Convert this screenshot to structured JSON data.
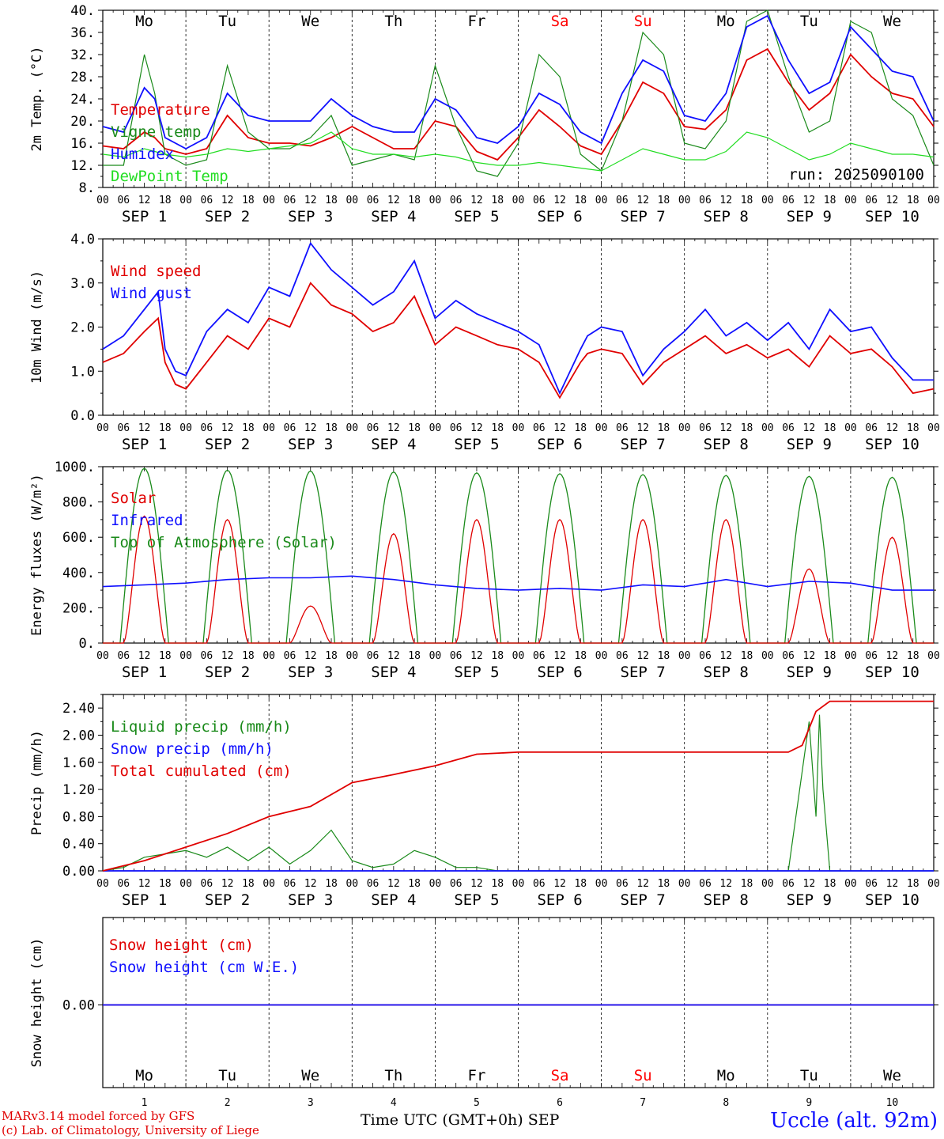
{
  "footer": {
    "credit_line1": "MARv3.14 model forced by GFS",
    "credit_line2": "(c) Lab. of Climatology, University of Liege",
    "xaxis_title": "Time UTC (GMT+0h) SEP",
    "station": "Uccle (alt. 92m)"
  },
  "colors": {
    "red": "#e00000",
    "blue": "#1010ff",
    "darkgreen": "#1a8a1a",
    "lightgreen": "#22dd22",
    "weekend": "#ff0000"
  },
  "days": {
    "weekdays": [
      "Mo",
      "Tu",
      "We",
      "Th",
      "Fr",
      "Sa",
      "Su",
      "Mo",
      "Tu",
      "We"
    ],
    "weekend_index": [
      5,
      6
    ],
    "dates": [
      "SEP  1",
      "SEP  2",
      "SEP  3",
      "SEP  4",
      "SEP  5",
      "SEP  6",
      "SEP  7",
      "SEP  8",
      "SEP  9",
      "SEP 10"
    ],
    "day_numbers": [
      "1",
      "2",
      "3",
      "4",
      "5",
      "6",
      "7",
      "8",
      "9",
      "10"
    ],
    "hour_ticks": [
      "00",
      "06",
      "12",
      "18"
    ],
    "final_tick": "00"
  },
  "chart_data": [
    {
      "type": "line",
      "ylabel": "2m Temp. (°C)",
      "ylim": [
        8,
        40
      ],
      "yticks": [
        "8.",
        "12.",
        "16.",
        "20.",
        "24.",
        "28.",
        "32.",
        "36.",
        "40."
      ],
      "annotation": "run: 2025090100",
      "x_unit": "hours since SEP 1 00 UTC",
      "series": [
        {
          "name": "Temperature",
          "color": "red",
          "x": [
            0,
            6,
            12,
            15,
            18,
            24,
            30,
            36,
            42,
            48,
            54,
            60,
            66,
            72,
            78,
            84,
            90,
            96,
            102,
            108,
            114,
            120,
            126,
            132,
            138,
            144,
            150,
            156,
            162,
            168,
            174,
            180,
            186,
            192,
            198,
            204,
            210,
            216,
            222,
            228,
            234,
            240
          ],
          "values": [
            15.5,
            15,
            18,
            17,
            15,
            14,
            15,
            21,
            17,
            16,
            16,
            15.5,
            17,
            19,
            17,
            15,
            15,
            20,
            19,
            14.5,
            13,
            17,
            22,
            19,
            15.5,
            14,
            20,
            27,
            25,
            19,
            18.5,
            22,
            31,
            33,
            27,
            22,
            25,
            32,
            28,
            25,
            24,
            19
          ]
        },
        {
          "name": "Vigne temp",
          "color": "darkgreen",
          "x": [
            0,
            6,
            12,
            15,
            18,
            24,
            30,
            36,
            42,
            48,
            54,
            60,
            66,
            72,
            78,
            84,
            90,
            96,
            102,
            108,
            114,
            120,
            126,
            132,
            138,
            144,
            150,
            156,
            162,
            168,
            174,
            180,
            186,
            192,
            198,
            204,
            210,
            216,
            222,
            228,
            234,
            240
          ],
          "values": [
            12,
            12,
            32,
            25,
            14,
            12,
            13,
            30,
            18,
            15,
            15,
            17,
            21,
            12,
            13,
            14,
            13,
            30,
            19,
            11,
            10,
            16,
            32,
            28,
            14,
            11,
            20,
            36,
            32,
            16,
            15,
            20,
            38,
            40,
            28,
            18,
            20,
            38,
            36,
            24,
            21,
            12
          ]
        },
        {
          "name": "Humidex",
          "color": "blue",
          "x": [
            0,
            6,
            12,
            15,
            18,
            24,
            30,
            36,
            42,
            48,
            54,
            60,
            66,
            72,
            78,
            84,
            90,
            96,
            102,
            108,
            114,
            120,
            126,
            132,
            138,
            144,
            150,
            156,
            162,
            168,
            174,
            180,
            186,
            192,
            198,
            204,
            210,
            216,
            222,
            228,
            234,
            240
          ],
          "values": [
            19,
            18,
            26,
            24,
            17,
            15,
            17,
            25,
            21,
            20,
            20,
            20,
            24,
            21,
            19,
            18,
            18,
            24,
            22,
            17,
            16,
            19,
            25,
            23,
            18,
            16,
            25,
            31,
            29,
            21,
            20,
            25,
            37,
            39,
            31,
            25,
            27,
            37,
            33,
            29,
            28,
            20
          ]
        },
        {
          "name": "DewPoint Temp",
          "color": "lightgreen",
          "x": [
            0,
            6,
            12,
            15,
            18,
            24,
            30,
            36,
            42,
            48,
            54,
            60,
            66,
            72,
            78,
            84,
            90,
            96,
            102,
            108,
            114,
            120,
            126,
            132,
            138,
            144,
            150,
            156,
            162,
            168,
            174,
            180,
            186,
            192,
            198,
            204,
            210,
            216,
            222,
            228,
            234,
            240
          ],
          "values": [
            14,
            13.5,
            15,
            14.5,
            14,
            13.5,
            14,
            15,
            14.5,
            15,
            15.5,
            16,
            18,
            15,
            14,
            14,
            13.5,
            14,
            13.5,
            12.5,
            12,
            12,
            12.5,
            12,
            11.5,
            11,
            13,
            15,
            14,
            13,
            13,
            14.5,
            18,
            17,
            15,
            13,
            14,
            16,
            15,
            14,
            14,
            13.5
          ]
        }
      ]
    },
    {
      "type": "line",
      "ylabel": "10m Wind (m/s)",
      "ylim": [
        0,
        4
      ],
      "yticks": [
        "0.0",
        "1.0",
        "2.0",
        "3.0",
        "4.0"
      ],
      "x_unit": "hours since SEP 1 00 UTC",
      "series": [
        {
          "name": "Wind speed",
          "color": "red",
          "x": [
            0,
            6,
            12,
            16,
            18,
            21,
            24,
            30,
            36,
            42,
            48,
            54,
            60,
            66,
            72,
            78,
            84,
            90,
            96,
            102,
            108,
            114,
            120,
            126,
            132,
            138,
            140,
            144,
            150,
            156,
            162,
            168,
            174,
            180,
            186,
            192,
            198,
            204,
            210,
            216,
            222,
            228,
            234,
            240
          ],
          "values": [
            1.2,
            1.4,
            1.9,
            2.2,
            1.2,
            0.7,
            0.6,
            1.2,
            1.8,
            1.5,
            2.2,
            2,
            3,
            2.5,
            2.3,
            1.9,
            2.1,
            2.7,
            1.6,
            2,
            1.8,
            1.6,
            1.5,
            1.2,
            0.4,
            1.2,
            1.4,
            1.5,
            1.4,
            0.7,
            1.2,
            1.5,
            1.8,
            1.4,
            1.6,
            1.3,
            1.5,
            1.1,
            1.8,
            1.4,
            1.5,
            1.1,
            0.5,
            0.6
          ]
        },
        {
          "name": "Wind gust",
          "color": "blue",
          "x": [
            0,
            6,
            12,
            16,
            18,
            21,
            24,
            30,
            36,
            42,
            48,
            54,
            60,
            66,
            72,
            78,
            84,
            90,
            96,
            102,
            108,
            114,
            120,
            126,
            132,
            138,
            140,
            144,
            150,
            156,
            162,
            168,
            174,
            180,
            186,
            192,
            198,
            204,
            210,
            216,
            222,
            228,
            234,
            240
          ],
          "values": [
            1.5,
            1.8,
            2.4,
            2.8,
            1.5,
            1,
            0.9,
            1.9,
            2.4,
            2.1,
            2.9,
            2.7,
            3.9,
            3.3,
            2.9,
            2.5,
            2.8,
            3.5,
            2.2,
            2.6,
            2.3,
            2.1,
            1.9,
            1.6,
            0.5,
            1.5,
            1.8,
            2,
            1.9,
            0.9,
            1.5,
            1.9,
            2.4,
            1.8,
            2.1,
            1.7,
            2.1,
            1.5,
            2.4,
            1.9,
            2,
            1.3,
            0.8,
            0.8
          ]
        }
      ]
    },
    {
      "type": "line",
      "ylabel": "Energy fluxes (W/m²)",
      "ylim": [
        0,
        1000
      ],
      "yticks": [
        "0.",
        "200.",
        "400.",
        "600.",
        "800.",
        "1000."
      ],
      "x_unit": "hours since SEP 1 00 UTC",
      "solar_day_peaks": [
        720,
        700,
        210,
        620,
        700,
        700,
        700,
        700,
        420,
        600
      ],
      "toa_day_peaks": [
        990,
        980,
        975,
        970,
        965,
        960,
        955,
        950,
        945,
        940
      ],
      "series": [
        {
          "name": "Solar",
          "color": "red"
        },
        {
          "name": "Infrared",
          "color": "blue",
          "x": [
            0,
            12,
            24,
            36,
            48,
            60,
            72,
            84,
            96,
            108,
            120,
            132,
            144,
            156,
            168,
            180,
            192,
            204,
            216,
            228,
            240
          ],
          "values": [
            320,
            330,
            340,
            360,
            370,
            370,
            380,
            360,
            330,
            310,
            300,
            310,
            300,
            330,
            320,
            360,
            320,
            350,
            340,
            300,
            300
          ]
        },
        {
          "name": "Top of Atmosphere (Solar)",
          "color": "darkgreen"
        }
      ]
    },
    {
      "type": "line",
      "ylabel": "Precip (mm/h)",
      "ylim": [
        0,
        2.6
      ],
      "yticks": [
        "0.00",
        "0.40",
        "0.80",
        "1.20",
        "1.60",
        "2.00",
        "2.40"
      ],
      "x_unit": "hours since SEP 1 00 UTC",
      "series": [
        {
          "name": "Liquid precip (mm/h)",
          "color": "darkgreen",
          "x": [
            0,
            6,
            12,
            18,
            24,
            30,
            36,
            42,
            48,
            54,
            60,
            66,
            72,
            78,
            84,
            90,
            96,
            102,
            108,
            114,
            120,
            126,
            192,
            198,
            204,
            206,
            207,
            208,
            210,
            216,
            240
          ],
          "values": [
            0,
            0.05,
            0.2,
            0.25,
            0.3,
            0.2,
            0.35,
            0.15,
            0.35,
            0.1,
            0.3,
            0.6,
            0.15,
            0.05,
            0.1,
            0.3,
            0.2,
            0.05,
            0.05,
            0,
            0,
            0,
            0,
            0,
            2.2,
            0.8,
            2.3,
            1.2,
            0,
            0,
            0
          ]
        },
        {
          "name": "Snow precip (mm/h)",
          "color": "blue",
          "x": [
            0,
            240
          ],
          "values": [
            0,
            0
          ]
        },
        {
          "name": "Total cumulated (cm)",
          "color": "red",
          "x": [
            0,
            12,
            24,
            36,
            48,
            60,
            72,
            84,
            96,
            108,
            120,
            132,
            144,
            156,
            168,
            180,
            192,
            198,
            202,
            204,
            206,
            210,
            240
          ],
          "values": [
            0,
            0.15,
            0.35,
            0.55,
            0.8,
            0.95,
            1.3,
            1.42,
            1.55,
            1.72,
            1.75,
            1.75,
            1.75,
            1.75,
            1.75,
            1.75,
            1.75,
            1.75,
            1.85,
            2.1,
            2.35,
            2.5,
            2.5
          ]
        }
      ]
    },
    {
      "type": "line",
      "ylabel": "Snow height (cm)",
      "yticks": [
        "0.00"
      ],
      "x_unit": "hours since SEP 1 00 UTC",
      "series": [
        {
          "name": "Snow height (cm)",
          "color": "red",
          "x": [
            0,
            240
          ],
          "values": [
            0,
            0
          ]
        },
        {
          "name": "Snow height (cm W.E.)",
          "color": "blue",
          "x": [
            0,
            240
          ],
          "values": [
            0,
            0
          ]
        }
      ]
    }
  ]
}
